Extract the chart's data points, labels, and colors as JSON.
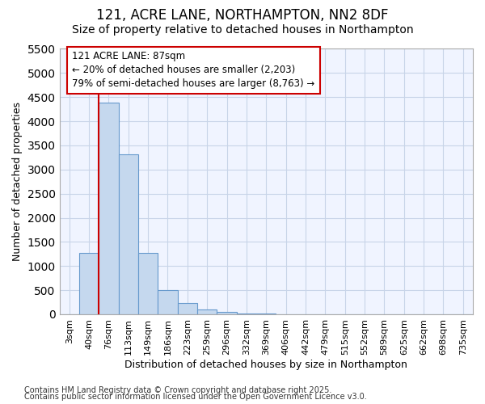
{
  "title": "121, ACRE LANE, NORTHAMPTON, NN2 8DF",
  "subtitle": "Size of property relative to detached houses in Northampton",
  "xlabel": "Distribution of detached houses by size in Northampton",
  "ylabel": "Number of detached properties",
  "categories": [
    "3sqm",
    "40sqm",
    "76sqm",
    "113sqm",
    "149sqm",
    "186sqm",
    "223sqm",
    "259sqm",
    "296sqm",
    "332sqm",
    "369sqm",
    "406sqm",
    "442sqm",
    "479sqm",
    "515sqm",
    "552sqm",
    "589sqm",
    "625sqm",
    "662sqm",
    "698sqm",
    "735sqm"
  ],
  "values": [
    0,
    1280,
    4380,
    3320,
    1280,
    500,
    230,
    100,
    50,
    20,
    10,
    0,
    0,
    0,
    0,
    0,
    0,
    0,
    0,
    0,
    0
  ],
  "bar_color": "#c5d8ee",
  "bar_edge_color": "#6699cc",
  "grid_color": "#c8d4e8",
  "background_color": "#ffffff",
  "plot_bg_color": "#f0f4ff",
  "vline_color": "#cc0000",
  "vline_x_index": 2,
  "annotation_text": "121 ACRE LANE: 87sqm\n← 20% of detached houses are smaller (2,203)\n79% of semi-detached houses are larger (8,763) →",
  "annotation_box_edgecolor": "#cc0000",
  "annotation_box_facecolor": "#ffffff",
  "ylim_max": 5500,
  "yticks": [
    0,
    500,
    1000,
    1500,
    2000,
    2500,
    3000,
    3500,
    4000,
    4500,
    5000,
    5500
  ],
  "footnote1": "Contains HM Land Registry data © Crown copyright and database right 2025.",
  "footnote2": "Contains public sector information licensed under the Open Government Licence v3.0.",
  "title_fontsize": 12,
  "subtitle_fontsize": 10,
  "axis_label_fontsize": 9,
  "tick_fontsize": 8,
  "footnote_fontsize": 7,
  "annotation_fontsize": 8.5
}
